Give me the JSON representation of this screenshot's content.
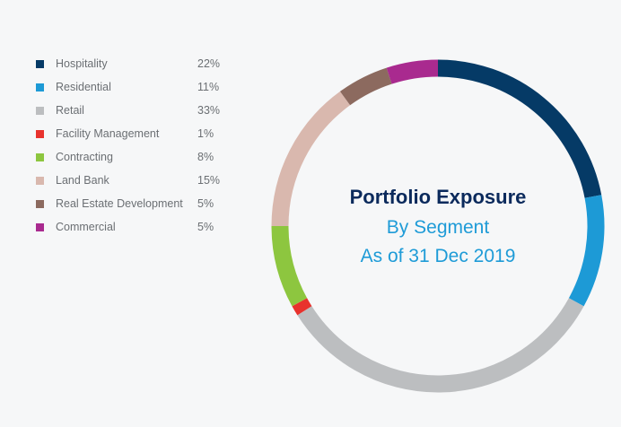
{
  "chart_data": {
    "type": "pie",
    "title": "Portfolio Exposure",
    "subtitle": "By Segment",
    "date_label": "As of 31 Dec 2019",
    "legend_position": "left",
    "categories": [
      "Hospitality",
      "Residential",
      "Retail",
      "Facility Management",
      "Contracting",
      "Land Bank",
      "Real Estate Development",
      "Commercial"
    ],
    "values": [
      22,
      11,
      33,
      1,
      8,
      15,
      5,
      5
    ],
    "value_labels": [
      "22%",
      "11%",
      "33%",
      "1%",
      "8%",
      "15%",
      "5%",
      "5%"
    ],
    "colors": [
      "#053a66",
      "#1d9ad6",
      "#bcbec0",
      "#e8322d",
      "#8dc63f",
      "#d9b8ae",
      "#8c6a5f",
      "#a92a8f"
    ]
  }
}
